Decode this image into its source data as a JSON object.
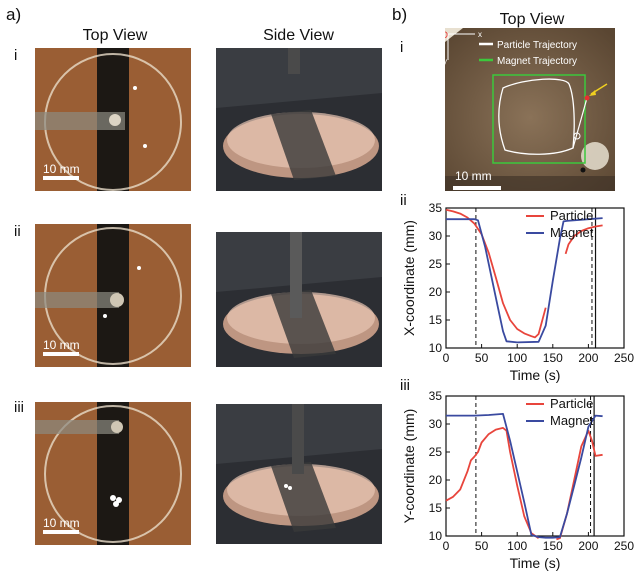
{
  "panel_a": {
    "label": "a)",
    "col_top": "Top View",
    "col_side": "Side View",
    "rows": [
      "i",
      "ii",
      "iii"
    ],
    "scale_label": "10 mm"
  },
  "panel_b": {
    "label": "b)",
    "title": "Top View",
    "rows": [
      "i",
      "ii",
      "iii"
    ],
    "photo": {
      "axis_origin": "O",
      "axis_x": "x",
      "axis_y": "y",
      "legend_particle": "Particle Trajectory",
      "legend_magnet": "Magnet Trajectory",
      "scale_label": "10 mm",
      "color_particle": "#ffffff",
      "color_magnet": "#3cc83c",
      "color_arrow": "#f0d020"
    }
  },
  "chart_data": [
    {
      "type": "line",
      "xlabel": "Time (s)",
      "ylabel": "X-coordinate (mm)",
      "xlim": [
        0,
        250
      ],
      "ylim": [
        10,
        35
      ],
      "xticks": [
        0,
        50,
        100,
        150,
        200,
        250
      ],
      "yticks": [
        10,
        15,
        20,
        25,
        30,
        35
      ],
      "vlines_dashed": [
        42,
        205
      ],
      "vlines_solid": [
        210
      ],
      "legend_position": "top-right",
      "series": [
        {
          "name": "Particle",
          "color": "#e8453c",
          "x": [
            0,
            10,
            20,
            30,
            40,
            50,
            60,
            70,
            80,
            90,
            100,
            110,
            120,
            125,
            130,
            140
          ],
          "y": [
            34.7,
            34.4,
            34,
            33.3,
            32.2,
            30.3,
            27,
            22.6,
            18,
            15,
            13.4,
            12.6,
            12.1,
            11.9,
            12.5,
            17.2
          ]
        },
        {
          "name": "Particle",
          "color": "#e8453c",
          "x": [
            168,
            172,
            180,
            190,
            200,
            210,
            220
          ],
          "y": [
            26.8,
            28.5,
            30,
            30.9,
            31.4,
            31.7,
            31.9
          ]
        },
        {
          "name": "Magnet",
          "color": "#3a4aa0",
          "x": [
            0,
            20,
            40,
            45,
            55,
            65,
            75,
            80,
            85,
            100,
            130,
            140,
            150,
            160,
            165,
            170,
            200,
            220
          ],
          "y": [
            33,
            33,
            33,
            32.8,
            28,
            22,
            16,
            13,
            11.2,
            11,
            11.1,
            14,
            22,
            29.5,
            32.6,
            32.7,
            33,
            33.2
          ]
        }
      ]
    },
    {
      "type": "line",
      "xlabel": "Time (s)",
      "ylabel": "Y-coordinate (mm)",
      "xlim": [
        0,
        250
      ],
      "ylim": [
        10,
        35
      ],
      "xticks": [
        0,
        50,
        100,
        150,
        200,
        250
      ],
      "yticks": [
        10,
        15,
        20,
        25,
        30,
        35
      ],
      "vlines_dashed": [
        42,
        203
      ],
      "vlines_solid": [
        208
      ],
      "legend_position": "top-right",
      "series": [
        {
          "name": "Particle",
          "color": "#e8453c",
          "x": [
            0,
            10,
            20,
            30,
            35,
            40,
            45,
            50,
            60,
            70,
            80,
            85,
            90,
            100,
            110,
            120,
            130
          ],
          "y": [
            16.3,
            17,
            18.3,
            21.5,
            23.5,
            24.2,
            25,
            26.7,
            28.2,
            29,
            29.3,
            28.8,
            25,
            19,
            13.5,
            10.5,
            9.6
          ]
        },
        {
          "name": "Particle",
          "color": "#e8453c",
          "x": [
            155,
            160,
            170,
            180,
            190,
            200,
            205,
            210,
            220
          ],
          "y": [
            9.4,
            9.6,
            14,
            20,
            26,
            28.8,
            27,
            24.3,
            24.5
          ]
        },
        {
          "name": "Magnet",
          "color": "#3a4aa0",
          "x": [
            0,
            20,
            40,
            60,
            80,
            90,
            100,
            110,
            120,
            130,
            140,
            150,
            160,
            170,
            180,
            190,
            200,
            210,
            220
          ],
          "y": [
            31.5,
            31.5,
            31.5,
            31.6,
            31.8,
            27,
            21.5,
            16,
            10.2,
            9.8,
            9.7,
            9.7,
            9.8,
            14,
            19,
            24,
            29.5,
            31.5,
            31.4
          ]
        }
      ]
    }
  ]
}
